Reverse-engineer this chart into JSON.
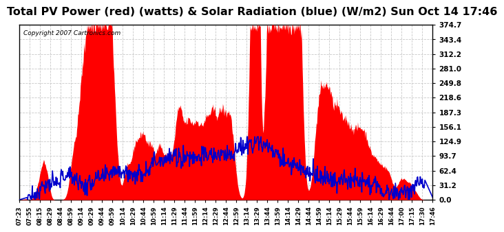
{
  "title": "Total PV Power (red) (watts) & Solar Radiation (blue) (W/m2) Sun Oct 14 17:46",
  "copyright": "Copyright 2007 Cartronics.com",
  "y_ticks": [
    0.0,
    31.2,
    62.4,
    93.7,
    124.9,
    156.1,
    187.3,
    218.6,
    249.8,
    281.0,
    312.2,
    343.4,
    374.7
  ],
  "y_max": 374.7,
  "y_min": 0.0,
  "background_color": "#ffffff",
  "grid_color": "#c8c8c8",
  "pv_color": "#ff0000",
  "solar_color": "#0000cc",
  "title_fontsize": 11.5,
  "tick_fontsize": 7.5,
  "x_tick_labels": [
    "07:23",
    "07:55",
    "08:15",
    "08:29",
    "08:44",
    "08:59",
    "09:14",
    "09:29",
    "09:44",
    "09:59",
    "10:14",
    "10:29",
    "10:44",
    "10:59",
    "11:14",
    "11:29",
    "11:44",
    "11:59",
    "12:14",
    "12:29",
    "12:44",
    "12:59",
    "13:14",
    "13:29",
    "13:44",
    "13:59",
    "14:14",
    "14:29",
    "14:44",
    "14:59",
    "15:14",
    "15:29",
    "15:44",
    "15:59",
    "16:14",
    "16:29",
    "16:44",
    "17:00",
    "17:15",
    "17:30",
    "17:46"
  ]
}
